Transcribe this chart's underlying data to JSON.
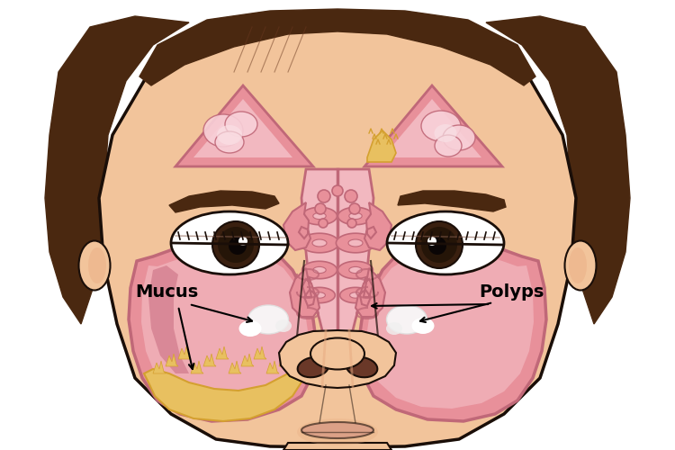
{
  "background_color": "#ffffff",
  "skin_color": "#F2C49B",
  "skin_shadow": "#E8AA80",
  "skin_light": "#F8D8B8",
  "pink_sinus": "#E8909A",
  "pink_light": "#F2B8C0",
  "pink_lighter": "#F8D0D8",
  "pink_dark": "#C06878",
  "pink_med": "#D48090",
  "pink_lining": "#E07880",
  "mucus_white": "#F8F8F8",
  "mucus_yellow": "#E8C870",
  "pus_color": "#D4A030",
  "pus_light": "#E8C060",
  "hair_color": "#4A2810",
  "hair_highlight": "#6A3820",
  "outline_color": "#1A0E08",
  "eye_white": "#FFFFFF",
  "eye_iris": "#2A1808",
  "eye_lash": "#1A0808",
  "nose_dark": "#C07858",
  "nostril_color": "#6A3828",
  "lip_color": "#D09080",
  "figsize": [
    7.5,
    5.0
  ],
  "dpi": 100
}
